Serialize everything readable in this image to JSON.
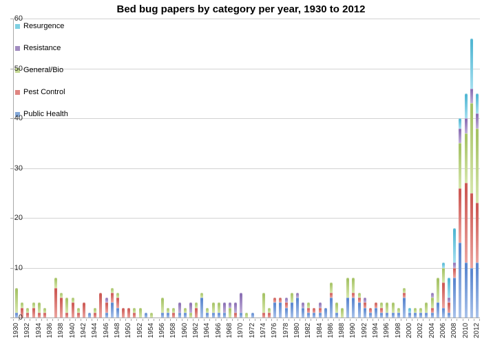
{
  "title": "Bed bug papers by category per year, 1930 to 2012",
  "axis_colors": {
    "gridline": "#d2d2d2",
    "axis_line": "#a8a8a8",
    "tick_label": "#262626"
  },
  "chart_data": {
    "type": "bar",
    "stacked": true,
    "title": "Bed bug papers by category per year, 1930 to 2012",
    "xlabel": "",
    "ylabel": "",
    "x_start": 1930,
    "x_end": 2012,
    "x_label_step": 2,
    "ylim": [
      0,
      60
    ],
    "ytick_step": 10,
    "yticks": [
      0,
      10,
      20,
      30,
      40,
      50,
      60
    ],
    "grid": "horizontal",
    "legend_position": "top-left-inside",
    "legend_order_top_to_bottom": [
      "Resurgence",
      "Resistance",
      "General/Bio",
      "Pest Control",
      "Public Health"
    ],
    "stack_order_bottom_to_top": [
      "Public Health",
      "Pest Control",
      "General/Bio",
      "Resistance",
      "Resurgence"
    ],
    "series": [
      {
        "name": "Public Health",
        "color": "#5b87cf",
        "tint": "#a9c2ea",
        "legend_color": "#84a9da",
        "values": [
          1,
          0,
          0,
          0,
          0,
          0,
          0,
          0,
          0,
          0,
          0,
          0,
          0,
          1,
          0,
          0,
          1,
          3,
          2,
          0,
          0,
          0,
          0,
          1,
          0,
          0,
          1,
          1,
          0,
          1,
          1,
          0,
          0,
          4,
          1,
          1,
          1,
          1,
          0,
          0,
          1,
          0,
          1,
          0,
          0,
          0,
          3,
          3,
          2,
          3,
          4,
          2,
          1,
          1,
          1,
          2,
          4,
          1,
          0,
          4,
          4,
          3,
          2,
          1,
          2,
          1,
          1,
          1,
          1,
          4,
          1,
          1,
          1,
          1,
          1,
          3,
          2,
          1,
          8,
          15,
          11,
          10,
          11
        ]
      },
      {
        "name": "Pest Control",
        "color": "#cd5a55",
        "tint": "#eba49f",
        "legend_color": "#df8581",
        "values": [
          0,
          2,
          1,
          2,
          1,
          1,
          0,
          6,
          4,
          1,
          3,
          1,
          3,
          0,
          1,
          5,
          2,
          2,
          2,
          2,
          2,
          1,
          0,
          0,
          0,
          0,
          0,
          0,
          1,
          0,
          0,
          0,
          2,
          0,
          0,
          0,
          0,
          0,
          0,
          1,
          0,
          0,
          0,
          0,
          1,
          1,
          1,
          1,
          1,
          0,
          0,
          0,
          1,
          1,
          1,
          0,
          1,
          0,
          0,
          0,
          1,
          1,
          1,
          1,
          1,
          1,
          0,
          0,
          0,
          1,
          0,
          0,
          0,
          0,
          1,
          0,
          5,
          2,
          2,
          11,
          16,
          15,
          12
        ]
      },
      {
        "name": "General/Bio",
        "color": "#a6c366",
        "tint": "#d6e6ab",
        "legend_color": "#c4d892",
        "values": [
          5,
          1,
          1,
          1,
          2,
          1,
          0,
          2,
          1,
          3,
          1,
          1,
          0,
          0,
          1,
          0,
          0,
          1,
          1,
          0,
          0,
          1,
          2,
          0,
          1,
          0,
          3,
          1,
          1,
          0,
          1,
          1,
          1,
          1,
          1,
          2,
          2,
          0,
          2,
          0,
          0,
          1,
          0,
          0,
          4,
          1,
          0,
          0,
          0,
          2,
          0,
          0,
          1,
          0,
          0,
          0,
          2,
          2,
          2,
          4,
          3,
          1,
          0,
          0,
          0,
          1,
          2,
          2,
          1,
          1,
          0,
          1,
          1,
          2,
          2,
          5,
          3,
          0,
          0,
          9,
          10,
          18,
          15
        ]
      },
      {
        "name": "Resistance",
        "color": "#8a6fb4",
        "tint": "#c0afd8",
        "legend_color": "#a18cc0",
        "values": [
          0,
          0,
          0,
          0,
          0,
          0,
          0,
          0,
          0,
          0,
          0,
          0,
          0,
          0,
          0,
          0,
          1,
          0,
          0,
          0,
          0,
          0,
          0,
          0,
          0,
          0,
          0,
          0,
          0,
          2,
          0,
          2,
          0,
          0,
          0,
          0,
          0,
          2,
          1,
          2,
          4,
          0,
          0,
          0,
          0,
          0,
          0,
          0,
          1,
          0,
          1,
          1,
          0,
          0,
          1,
          0,
          0,
          0,
          0,
          0,
          0,
          0,
          1,
          0,
          0,
          0,
          0,
          0,
          0,
          0,
          0,
          0,
          0,
          0,
          1,
          0,
          0,
          1,
          1,
          3,
          3,
          3,
          3
        ]
      },
      {
        "name": "Resurgence",
        "color": "#52b7d3",
        "tint": "#a5dff0",
        "legend_color": "#7fd0e2",
        "values": [
          0,
          0,
          0,
          0,
          0,
          0,
          0,
          0,
          0,
          0,
          0,
          0,
          0,
          0,
          0,
          0,
          0,
          0,
          0,
          0,
          0,
          0,
          0,
          0,
          0,
          0,
          0,
          0,
          0,
          0,
          0,
          0,
          0,
          0,
          0,
          0,
          0,
          0,
          0,
          0,
          0,
          0,
          0,
          0,
          0,
          0,
          0,
          0,
          0,
          0,
          0,
          0,
          0,
          0,
          0,
          0,
          0,
          0,
          0,
          0,
          0,
          0,
          0,
          0,
          0,
          0,
          0,
          0,
          0,
          0,
          1,
          0,
          0,
          0,
          0,
          0,
          1,
          4,
          7,
          2,
          5,
          10,
          4
        ]
      }
    ]
  }
}
